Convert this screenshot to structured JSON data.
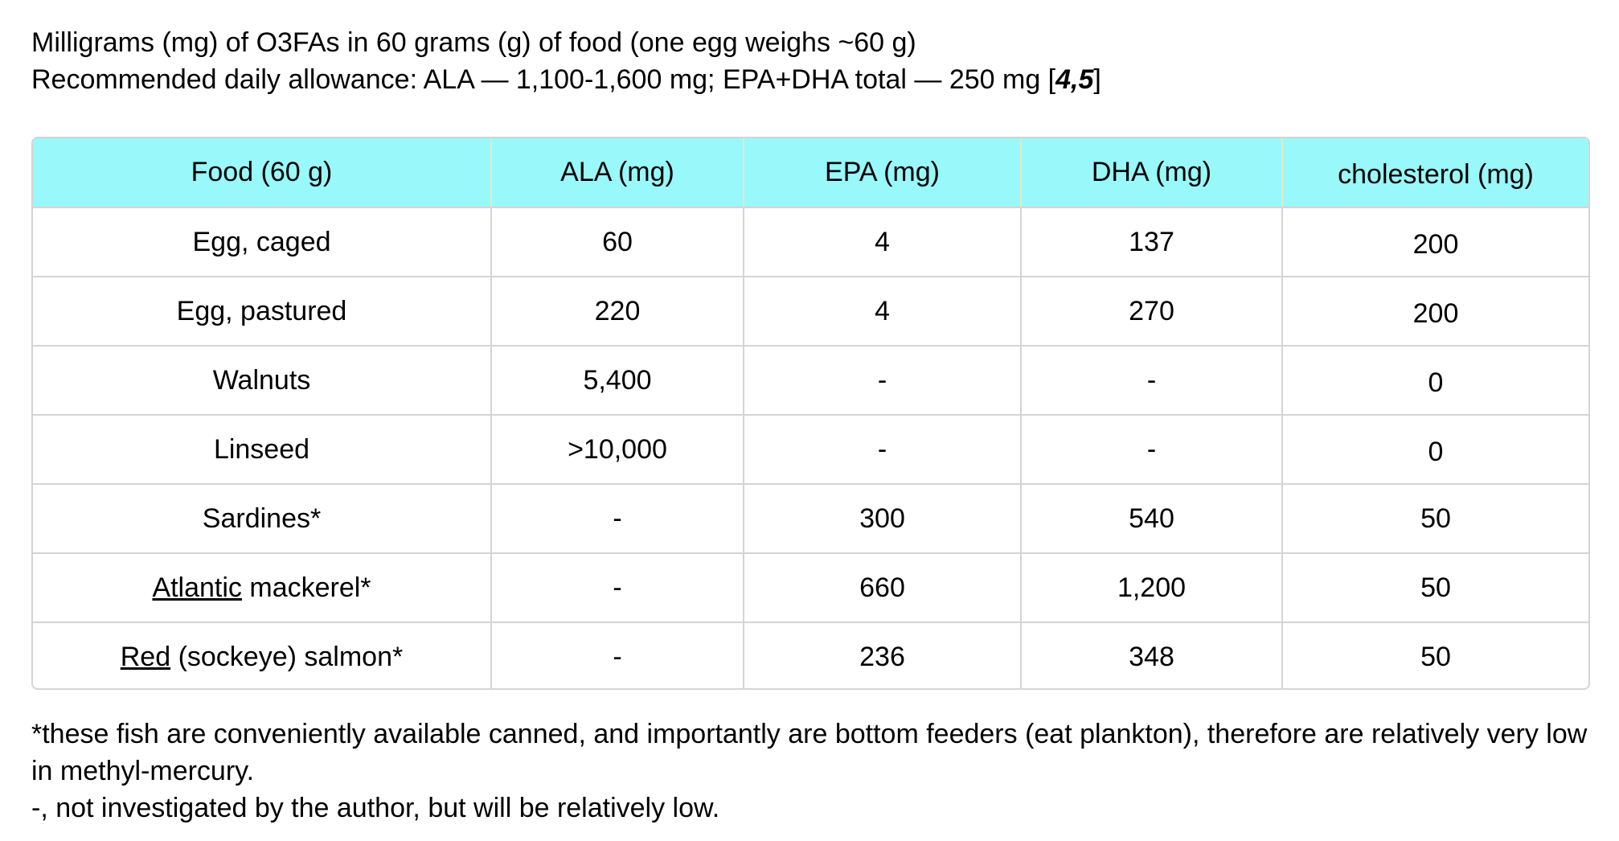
{
  "intro": {
    "line1": "Milligrams (mg) of O3FAs in 60 grams (g) of food (one egg weighs ~60 g)",
    "line2_text": "Recommended daily allowance: ALA — 1,100-1,600 mg; EPA+DHA total — 250 mg [",
    "line2_ref": "4,5",
    "line2_close": "]"
  },
  "table": {
    "headers": [
      "Food  (60 g)",
      "ALA (mg)",
      "EPA (mg)",
      "DHA (mg)",
      "cholesterol (mg)"
    ],
    "header_color": "#99f8f9",
    "rows": [
      {
        "food_prefix": "",
        "food_underlined": "",
        "food": "Egg, caged",
        "ala": "60",
        "epa": "4",
        "dha": "137",
        "cholesterol": "200"
      },
      {
        "food_prefix": "",
        "food_underlined": "",
        "food": "Egg, pastured",
        "ala": "220",
        "epa": "4",
        "dha": "270",
        "cholesterol": "200"
      },
      {
        "food_prefix": "",
        "food_underlined": "",
        "food": "Walnuts",
        "ala": "5,400",
        "epa": "-",
        "dha": "-",
        "cholesterol": "0"
      },
      {
        "food_prefix": "",
        "food_underlined": "",
        "food": "Linseed",
        "ala": ">10,000",
        "epa": "-",
        "dha": "-",
        "cholesterol": "0"
      },
      {
        "food_prefix": "",
        "food_underlined": "",
        "food": "Sardines*",
        "ala": "-",
        "epa": "300",
        "dha": "540",
        "cholesterol": "50"
      },
      {
        "food_prefix": "",
        "food_underlined": "Atlantic",
        "food": " mackerel*",
        "ala": "-",
        "epa": "660",
        "dha": "1,200",
        "cholesterol": "50"
      },
      {
        "food_prefix": "",
        "food_underlined": "Red",
        "food": " (sockeye) salmon*",
        "ala": "-",
        "epa": "236",
        "dha": "348",
        "cholesterol": "50"
      }
    ]
  },
  "footnotes": {
    "fish_note": "*these fish are conveniently available canned, and importantly are bottom feeders (eat plankton), therefore are relatively very low in methyl-mercury.",
    "dash_note": "-, not investigated by the author, but will be relatively low."
  }
}
